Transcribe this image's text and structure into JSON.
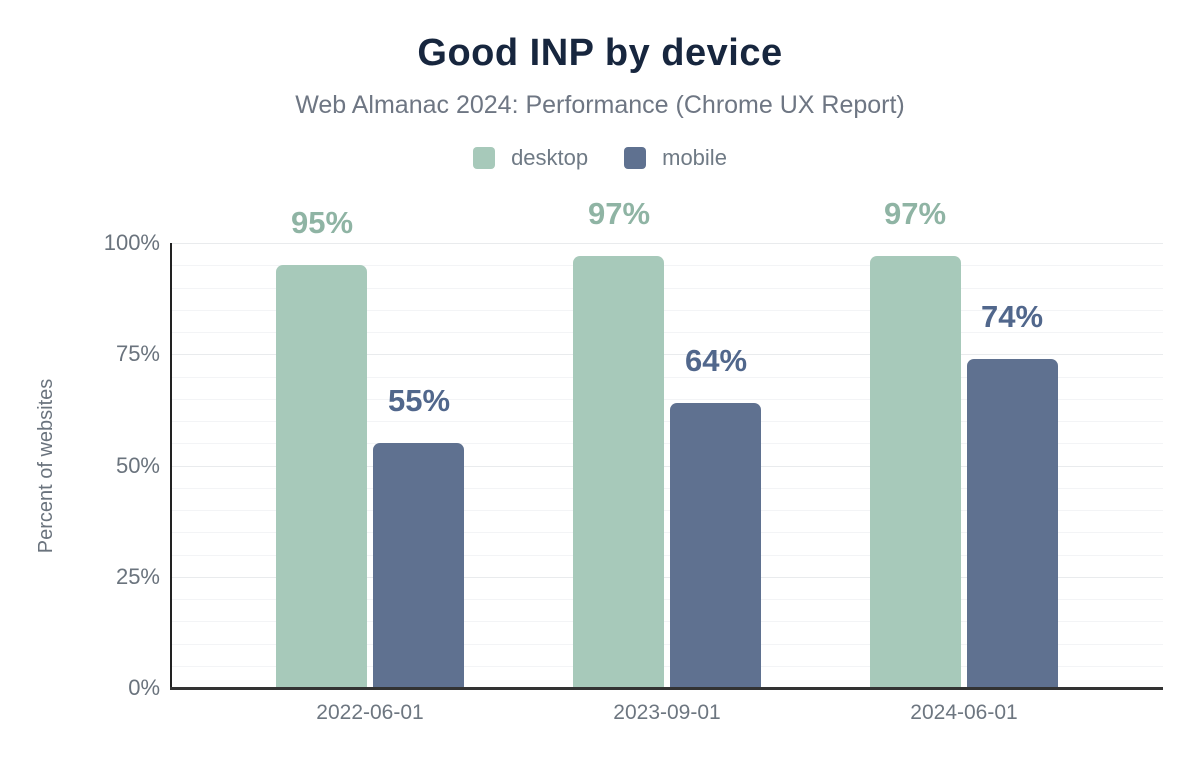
{
  "figure": {
    "title": "Good INP by device",
    "subtitle": "Web Almanac 2024: Performance (Chrome UX Report)"
  },
  "colors": {
    "background": "#ffffff",
    "title_text": "#17263e",
    "subtitle_text": "#6e7683",
    "tick_text": "#6a737d",
    "axis_line": "#333333",
    "grid_minor": "#f3f4f6",
    "grid_major": "#e9ebed",
    "desktop_bar": "#a7c9ba",
    "desktop_label": "#8fb4a4",
    "mobile_bar": "#5f7190",
    "mobile_label": "#51678c"
  },
  "chart_data": {
    "type": "bar",
    "title": "Good INP by device",
    "subtitle": "Web Almanac 2024: Performance (Chrome UX Report)",
    "categories": [
      "2022-06-01",
      "2023-09-01",
      "2024-06-01"
    ],
    "series": [
      {
        "name": "desktop",
        "values": [
          95,
          97,
          97
        ],
        "color": "#a7c9ba",
        "label_color": "#8fb4a4"
      },
      {
        "name": "mobile",
        "values": [
          55,
          64,
          74
        ],
        "color": "#5f7190",
        "label_color": "#51678c"
      }
    ],
    "value_suffix": "%",
    "data_labels_shown": true,
    "xlabel": "",
    "ylabel": "Percent of websites",
    "ylim": [
      0,
      100
    ],
    "yticks": [
      0,
      25,
      50,
      75,
      100
    ],
    "ytick_labels": [
      "0%",
      "25%",
      "50%",
      "75%",
      "100%"
    ],
    "grid": "horizontal minor lines every 5%, on",
    "legend_position": "top-center"
  }
}
